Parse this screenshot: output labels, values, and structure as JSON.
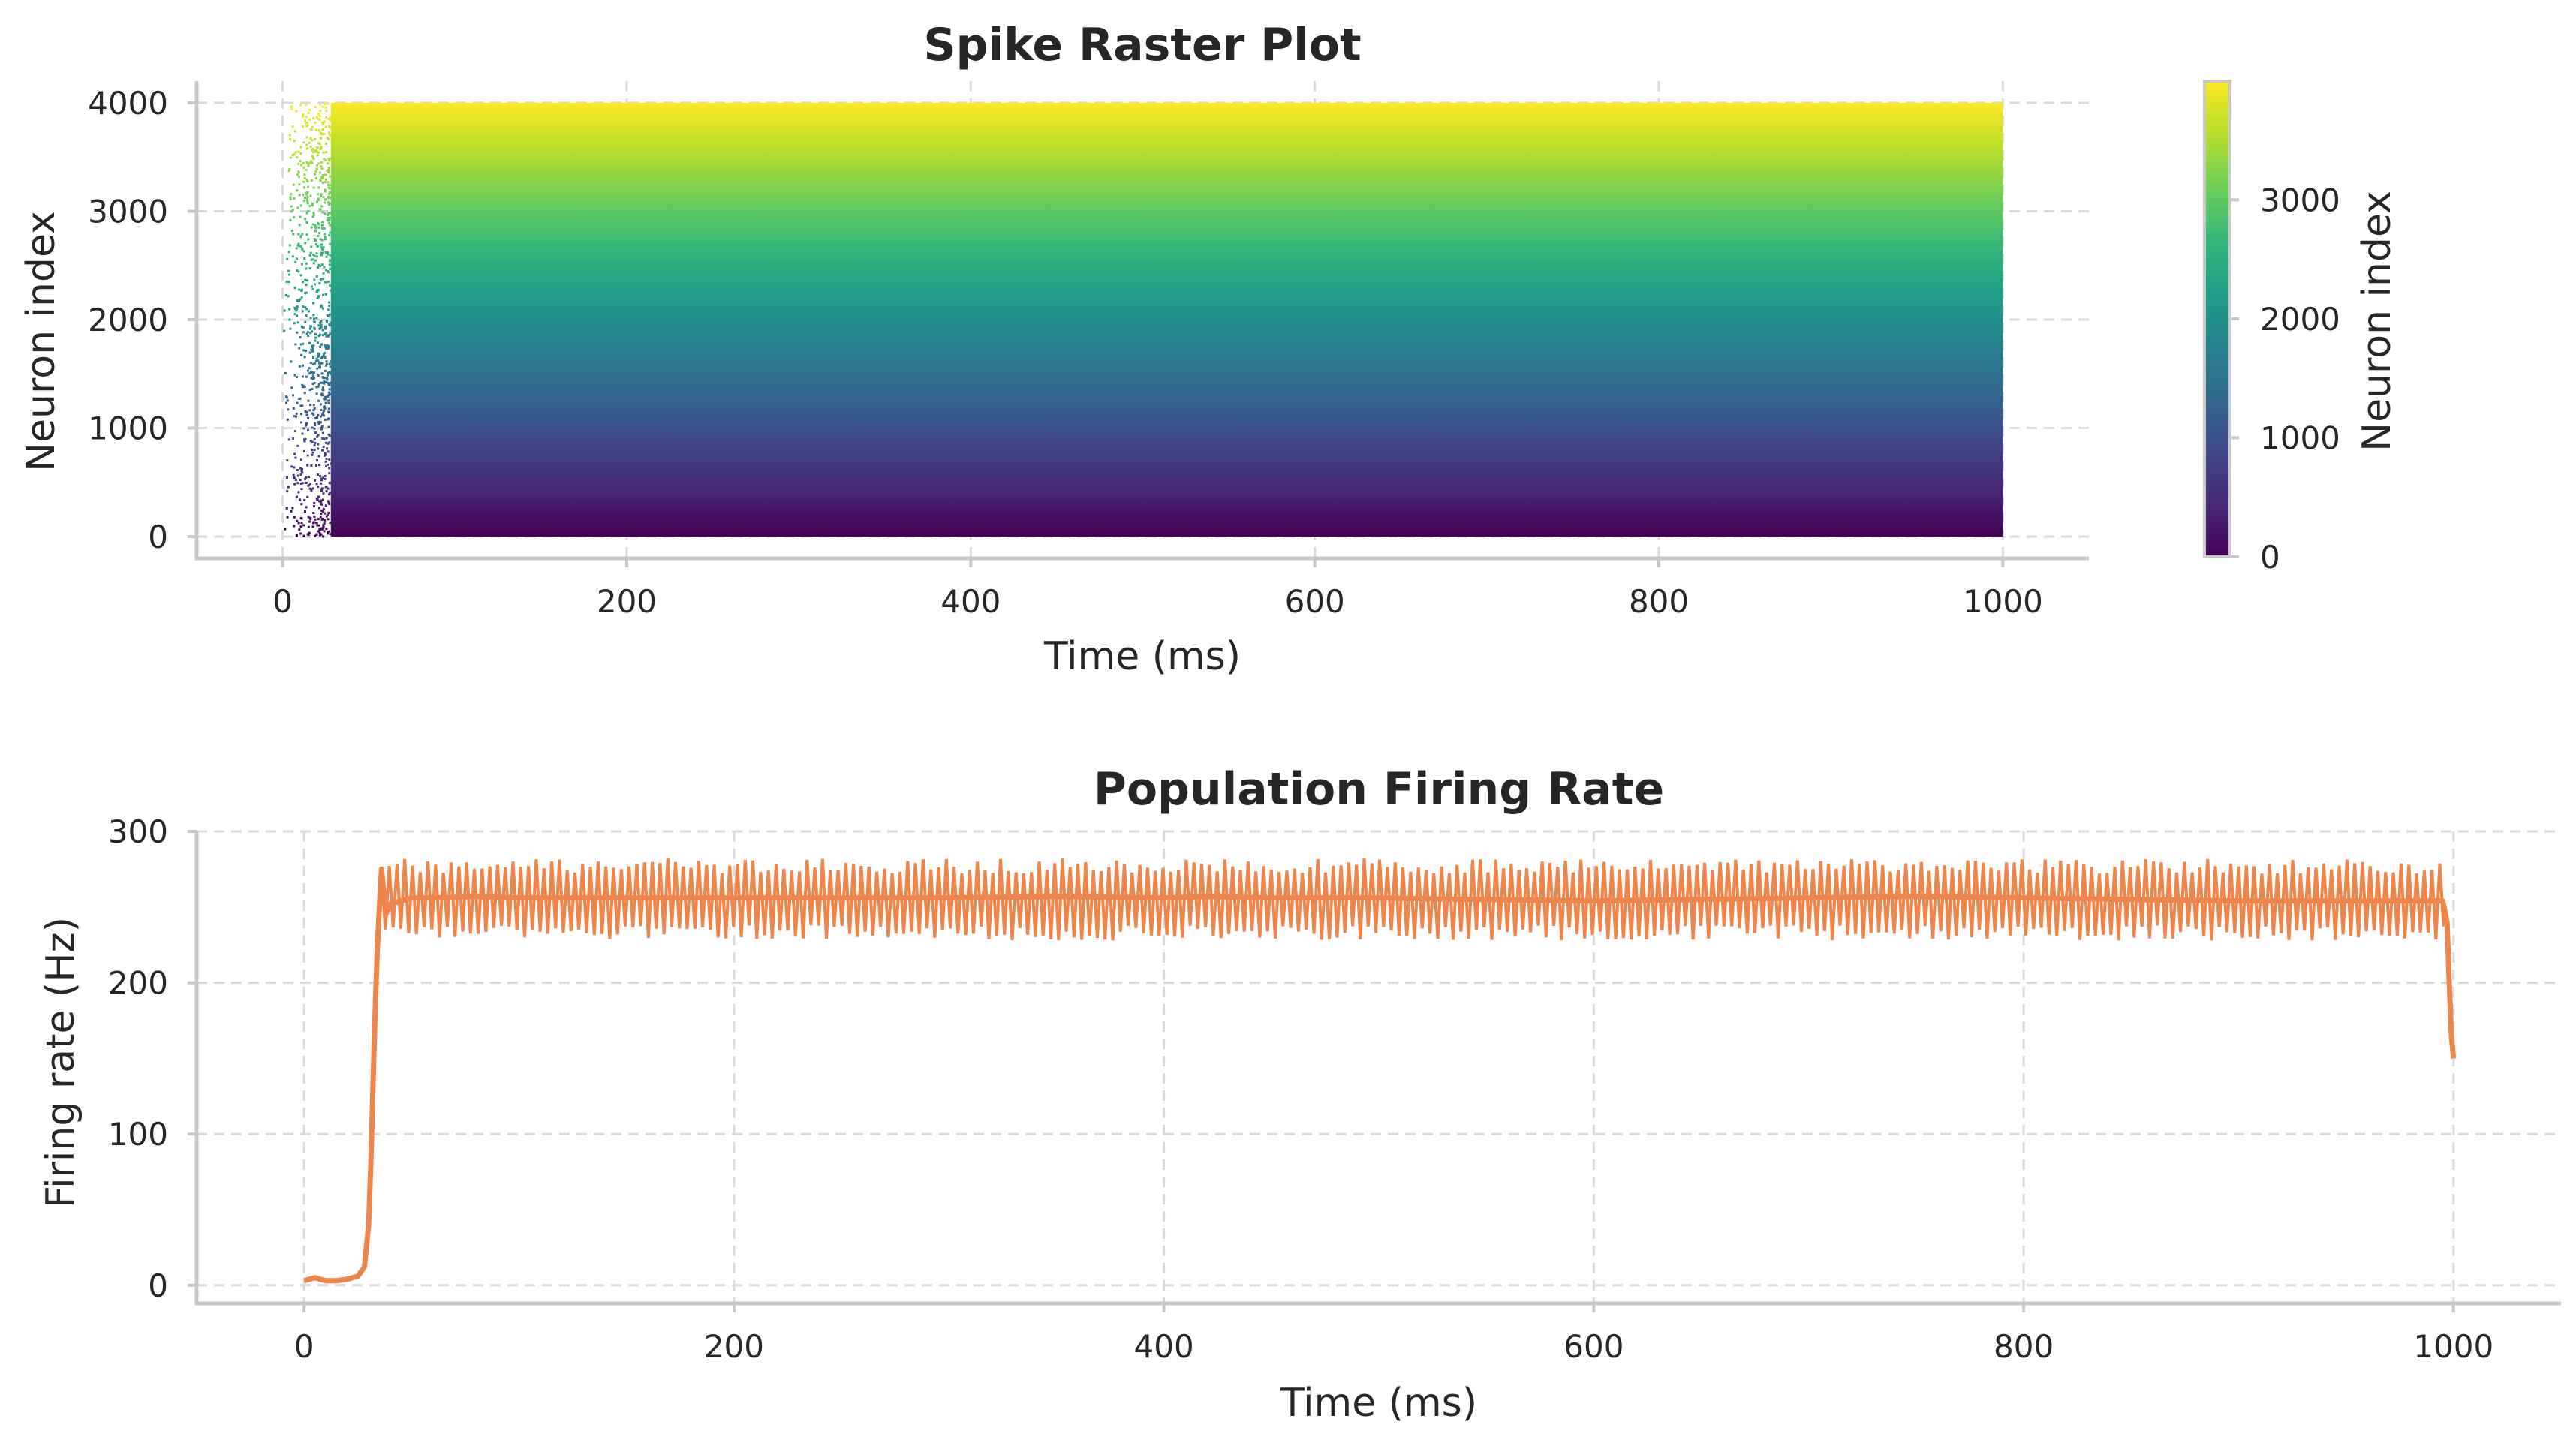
{
  "chart_data": [
    {
      "type": "scatter",
      "title": "Spike Raster Plot",
      "xlabel": "Time (ms)",
      "ylabel": "Neuron index",
      "xlim": [
        -50,
        1050
      ],
      "ylim": [
        -200,
        4200
      ],
      "xticks": [
        0,
        200,
        400,
        600,
        800,
        1000
      ],
      "yticks": [
        0,
        1000,
        2000,
        3000,
        4000
      ],
      "grid": true,
      "colormap": "viridis",
      "neurons": 4000,
      "sparse_region": {
        "t_start": 0,
        "t_end": 28
      },
      "dense_region": {
        "t_start": 28,
        "t_end": 1000
      },
      "colorbar": {
        "label": "Neuron index",
        "range": [
          0,
          3999
        ],
        "ticks": [
          0,
          1000,
          2000,
          3000
        ]
      },
      "viridis_stops": [
        "#440154",
        "#482878",
        "#3e4989",
        "#31688e",
        "#26828e",
        "#1f9e89",
        "#35b779",
        "#6ece58",
        "#b5de2b",
        "#fde725"
      ]
    },
    {
      "type": "line",
      "title": "Population Firing Rate",
      "xlabel": "Time (ms)",
      "ylabel": "Firing rate (Hz)",
      "xlim": [
        -50,
        1050
      ],
      "ylim": [
        -12,
        300
      ],
      "xticks": [
        0,
        200,
        400,
        600,
        800,
        1000
      ],
      "yticks": [
        0,
        100,
        200,
        300
      ],
      "grid": true,
      "color": "#ee854a",
      "x": [
        0,
        5,
        10,
        15,
        20,
        25,
        28,
        30,
        31,
        32,
        33,
        34,
        35,
        36,
        38,
        40,
        50,
        60,
        80,
        100,
        150,
        200,
        250,
        300,
        350,
        400,
        420,
        450,
        500,
        540,
        550,
        600,
        650,
        700,
        750,
        800,
        850,
        900,
        950,
        980,
        995,
        997,
        998,
        999,
        1000
      ],
      "y": [
        3,
        5,
        3,
        3,
        4,
        6,
        12,
        40,
        80,
        130,
        180,
        220,
        250,
        275,
        245,
        252,
        256,
        256,
        257,
        256,
        256,
        256,
        256,
        256,
        257,
        256,
        257,
        256,
        256,
        255,
        255,
        254,
        255,
        256,
        257,
        256,
        255,
        254,
        254,
        254,
        254,
        240,
        200,
        165,
        150
      ],
      "oscillation": {
        "amplitude_hz": 20,
        "period_ms": 3.6,
        "band": [
          230,
          280
        ]
      }
    }
  ]
}
